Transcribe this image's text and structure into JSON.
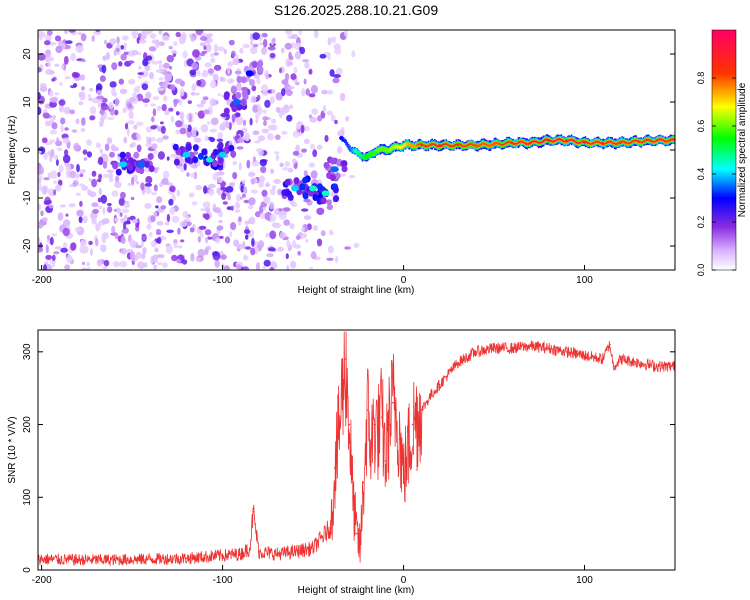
{
  "title": "S126.2025.288.10.21.G09",
  "chart_data": [
    {
      "type": "heatmap",
      "xlabel": "Height of straight line (km)",
      "ylabel": "Frequency (Hz)",
      "xlim": [
        -202,
        150
      ],
      "ylim": [
        -25,
        25
      ],
      "xticks": [
        -200,
        -100,
        0,
        100
      ],
      "yticks": [
        -20,
        -10,
        0,
        10,
        20
      ],
      "colorbar": {
        "label": "Normalized spectral amplitude",
        "range": [
          0,
          1
        ],
        "ticks": [
          0.0,
          0.2,
          0.4,
          0.6,
          0.8
        ],
        "tick_labels": [
          "0.0",
          "0.2",
          "0.4",
          "0.6",
          "0.8"
        ],
        "colors": [
          "#ffffff",
          "#b77bff",
          "#6a00ff",
          "#0000ff",
          "#00ffff",
          "#00ff00",
          "#ffff00",
          "#ff0000",
          "#ff0080"
        ]
      },
      "ridge": {
        "x": [
          -35,
          -30,
          -25,
          -20,
          -15,
          -10,
          -5,
          0,
          10,
          20,
          30,
          40,
          50,
          60,
          70,
          80,
          90,
          100,
          110,
          120,
          130,
          140,
          150
        ],
        "y": [
          2.5,
          0.5,
          -1.0,
          -1.5,
          0.0,
          0.0,
          0.5,
          1.0,
          1.0,
          1.0,
          1.0,
          1.0,
          1.2,
          1.5,
          1.5,
          2.0,
          2.0,
          1.5,
          1.5,
          1.5,
          1.8,
          2.0,
          2.0
        ],
        "amplitude": [
          0.3,
          0.35,
          0.5,
          0.55,
          0.6,
          0.6,
          0.65,
          0.7,
          0.85,
          0.9,
          0.85,
          0.8,
          0.8,
          0.85,
          0.9,
          0.95,
          0.9,
          0.9,
          0.85,
          0.85,
          0.85,
          0.85,
          0.85
        ]
      },
      "clusters": [
        {
          "x": -155,
          "y": -3,
          "amplitude": 0.25
        },
        {
          "x": -145,
          "y": -3,
          "amplitude": 0.2
        },
        {
          "x": -120,
          "y": -1,
          "amplitude": 0.25
        },
        {
          "x": -107,
          "y": -2,
          "amplitude": 0.3
        },
        {
          "x": -100,
          "y": -1,
          "amplitude": 0.25
        },
        {
          "x": -92,
          "y": 10,
          "amplitude": 0.2
        },
        {
          "x": -85,
          "y": 16,
          "amplitude": 0.15
        },
        {
          "x": -60,
          "y": -8,
          "amplitude": 0.25
        },
        {
          "x": -50,
          "y": -8,
          "amplitude": 0.3
        },
        {
          "x": -43,
          "y": -9,
          "amplitude": 0.3
        },
        {
          "x": -38,
          "y": -4,
          "amplitude": 0.2
        }
      ]
    },
    {
      "type": "line",
      "xlabel": "Height of straight line (km)",
      "ylabel": "SNR (10 * V/V)",
      "xlim": [
        -202,
        150
      ],
      "ylim": [
        0,
        330
      ],
      "xticks": [
        -200,
        -100,
        0,
        100
      ],
      "yticks": [
        0,
        100,
        200,
        300
      ],
      "color": "#ee3333",
      "series": [
        {
          "name": "SNR",
          "x": [
            -202,
            -180,
            -160,
            -140,
            -120,
            -100,
            -90,
            -85,
            -83,
            -80,
            -70,
            -60,
            -50,
            -45,
            -40,
            -38,
            -36,
            -34,
            -32,
            -30,
            -28,
            -26,
            -24,
            -22,
            -20,
            -18,
            -16,
            -14,
            -12,
            -10,
            -8,
            -6,
            -4,
            -2,
            0,
            5,
            10,
            15,
            20,
            25,
            30,
            40,
            50,
            60,
            70,
            80,
            90,
            100,
            110,
            114,
            116,
            120,
            130,
            140,
            150
          ],
          "y": [
            15,
            14,
            14,
            15,
            16,
            20,
            22,
            30,
            80,
            25,
            22,
            25,
            30,
            45,
            60,
            140,
            180,
            240,
            290,
            200,
            100,
            50,
            30,
            120,
            220,
            170,
            200,
            190,
            210,
            150,
            200,
            230,
            220,
            180,
            130,
            200,
            220,
            240,
            255,
            270,
            285,
            300,
            305,
            305,
            308,
            305,
            300,
            295,
            290,
            310,
            280,
            290,
            285,
            280,
            280
          ]
        }
      ]
    }
  ]
}
